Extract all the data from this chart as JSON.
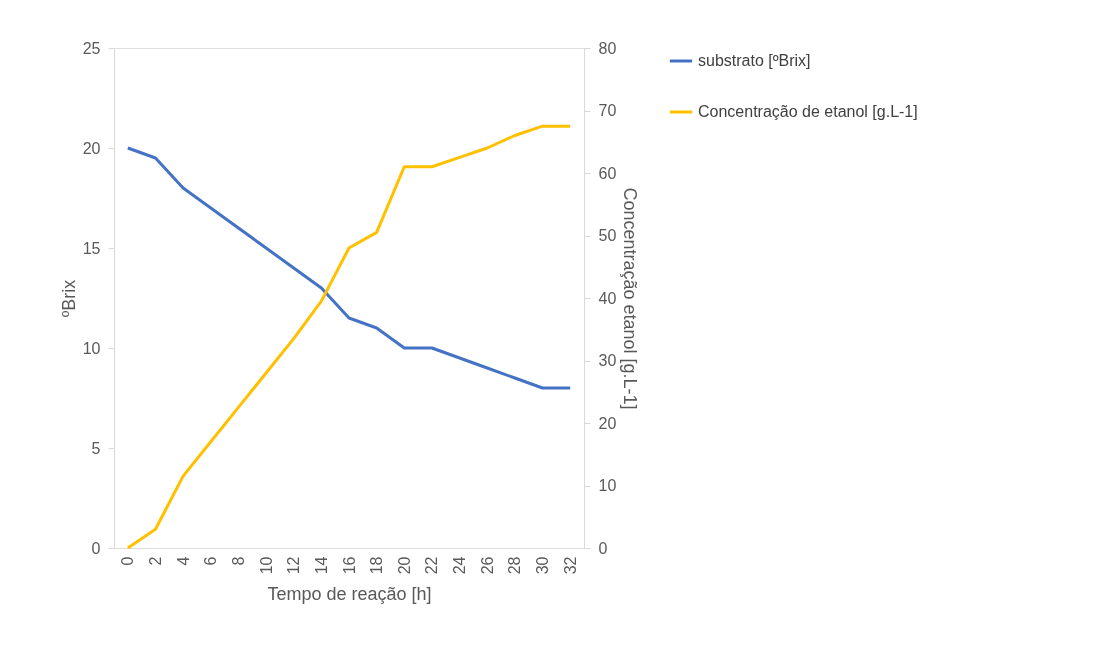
{
  "chart_data": {
    "type": "line",
    "xlabel": "Tempo de reação [h]",
    "ylabel": "ºBrix",
    "y2label": "Concentração etanol [g.L-1]",
    "categories": [
      "0",
      "2",
      "4",
      "6",
      "8",
      "10",
      "12",
      "14",
      "16",
      "18",
      "20",
      "22",
      "24",
      "26",
      "28",
      "30",
      "32"
    ],
    "series": [
      {
        "name": "substrato [ºBrix]",
        "color": "#4472c4",
        "values": [
          20,
          19.5,
          18,
          17,
          16,
          15,
          14,
          13,
          11.5,
          11,
          10,
          10,
          9.5,
          9,
          8.5,
          8,
          8
        ]
      },
      {
        "name": "Concentração de etanol [g.L-1]",
        "color": "#ffc000",
        "axis": "y2",
        "values": [
          0,
          3,
          11.5,
          17,
          22.5,
          28,
          33.5,
          39.5,
          48,
          50.5,
          61,
          61,
          62.5,
          64,
          66,
          67.5,
          67.5
        ]
      }
    ],
    "ylim": [
      0,
      25
    ],
    "yticks": [
      0,
      5,
      10,
      15,
      20,
      25
    ],
    "y2lim": [
      0,
      80
    ],
    "y2ticks": [
      0,
      10,
      20,
      30,
      40,
      50,
      60,
      70,
      80
    ],
    "grid": false,
    "legend": "right",
    "marker": "none",
    "line_style": "solid"
  }
}
